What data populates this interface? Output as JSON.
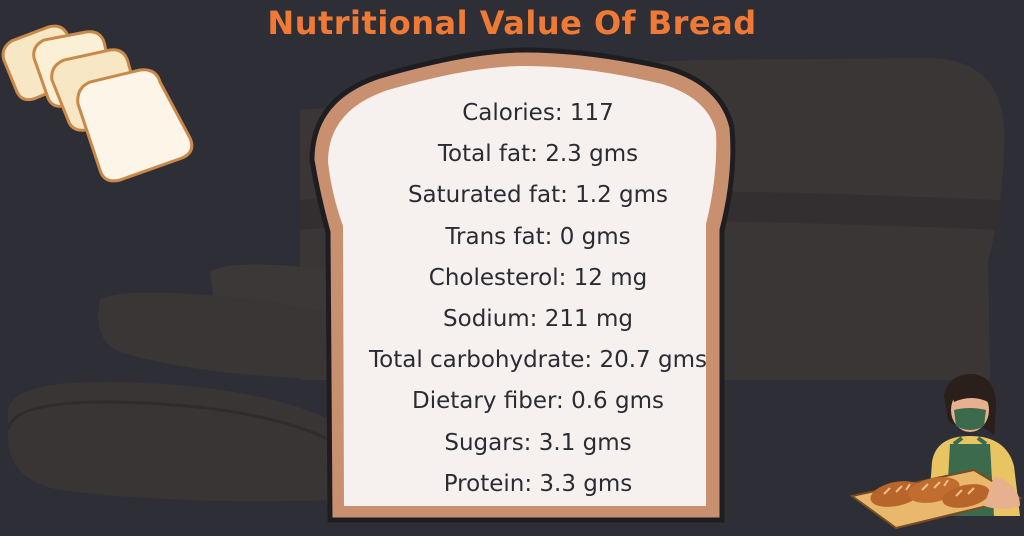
{
  "title": "Nutritional Value Of  Bread",
  "facts": [
    "Calories: 117",
    "Total fat: 2.3 gms",
    "Saturated fat: 1.2 gms",
    "Trans fat: 0 gms",
    "Cholesterol: 12 mg",
    "Sodium: 211 mg",
    "Total carbohydrate: 20.7 gms",
    "Dietary fiber: 0.6 gms",
    "Sugars: 3.1 gms",
    "Protein: 3.3 gms"
  ],
  "colors": {
    "background": "#2e2f36",
    "title": "#f07a35",
    "crust": "#c8906e",
    "crumb": "#f6f1ef",
    "text": "#2b2c33"
  },
  "icons": [
    "bread-slices-icon",
    "baker-illustration-icon",
    "bread-loaf-silhouette-icon"
  ]
}
